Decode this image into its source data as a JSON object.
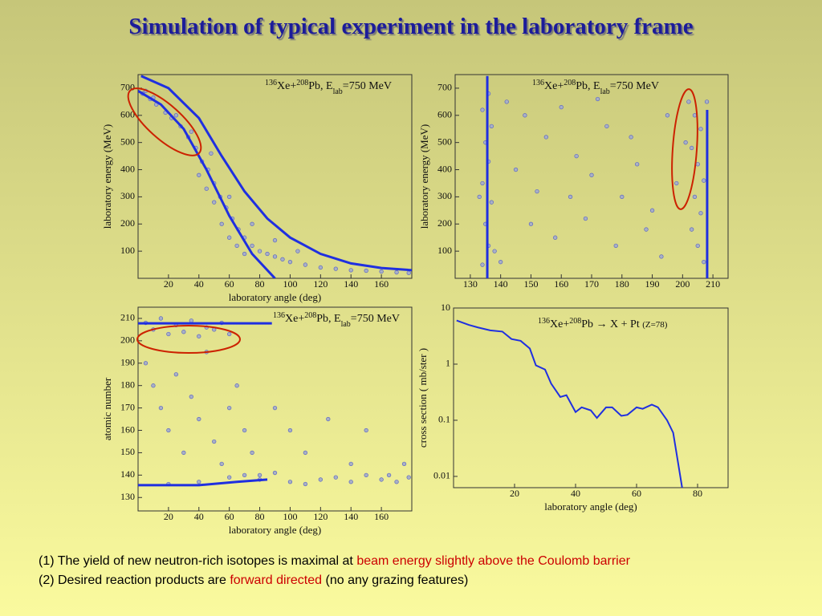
{
  "title": "Simulation of typical experiment in the laboratory frame",
  "chart_data": [
    {
      "type": "scatter",
      "annotation": [
        "136",
        "Xe+",
        "208",
        "Pb, E",
        "lab",
        "=750 MeV"
      ],
      "xlabel": "laboratory angle (deg)",
      "ylabel": "laboratory energy (MeV)",
      "xlim": [
        0,
        180
      ],
      "ylim": [
        0,
        750
      ],
      "xticks": [
        20,
        40,
        60,
        80,
        100,
        120,
        140,
        160
      ],
      "yticks": [
        100,
        200,
        300,
        400,
        500,
        600,
        700
      ],
      "points": {
        "color": "#a9b0c6",
        "x": [
          3,
          8,
          12,
          18,
          22,
          28,
          33,
          38,
          42,
          46,
          50,
          54,
          58,
          62,
          66,
          70,
          75,
          80,
          85,
          90,
          95,
          100,
          110,
          120,
          130,
          140,
          150,
          160,
          170,
          178,
          40,
          45,
          50,
          55,
          60,
          65,
          70,
          48,
          35,
          25,
          10,
          5,
          60,
          75,
          90,
          105
        ],
        "values": [
          680,
          660,
          640,
          610,
          590,
          560,
          520,
          480,
          430,
          400,
          350,
          300,
          260,
          220,
          180,
          150,
          120,
          100,
          90,
          80,
          70,
          60,
          50,
          40,
          35,
          30,
          28,
          25,
          22,
          20,
          380,
          330,
          280,
          200,
          150,
          120,
          90,
          460,
          540,
          600,
          665,
          690,
          300,
          200,
          140,
          100
        ]
      },
      "series": [
        {
          "color": "#1f2fe0",
          "x": [
            2,
            20,
            40,
            55,
            70,
            85,
            100,
            120,
            140,
            160,
            180
          ],
          "values": [
            745,
            700,
            590,
            450,
            320,
            220,
            150,
            90,
            55,
            38,
            30
          ]
        },
        {
          "color": "#1f2fe0",
          "x": [
            0,
            15,
            30,
            45,
            60,
            75,
            90
          ],
          "values": [
            690,
            640,
            550,
            400,
            230,
            90,
            0
          ]
        }
      ]
    },
    {
      "type": "scatter",
      "annotation": [
        "136",
        "Xe+",
        "208",
        "Pb, E",
        "lab",
        "=750 MeV"
      ],
      "ylabel": "laboratory energy (MeV)",
      "xlim": [
        125,
        215
      ],
      "ylim": [
        0,
        750
      ],
      "xticks": [
        130,
        140,
        150,
        160,
        170,
        180,
        190,
        200,
        210
      ],
      "yticks": [
        100,
        200,
        300,
        400,
        500,
        600,
        700
      ],
      "points": {
        "color": "#a9b0c6",
        "x": [
          134,
          136,
          135,
          137,
          134,
          136,
          135,
          137,
          134,
          136,
          138,
          133,
          202,
          204,
          206,
          203,
          205,
          207,
          204,
          206,
          203,
          205,
          207,
          208,
          201,
          142,
          148,
          155,
          160,
          165,
          170,
          175,
          180,
          185,
          190,
          195,
          150,
          158,
          168,
          178,
          188,
          198,
          145,
          163,
          172,
          183,
          193,
          140,
          152
        ],
        "values": [
          50,
          120,
          200,
          280,
          350,
          430,
          500,
          560,
          620,
          680,
          100,
          300,
          650,
          600,
          550,
          480,
          420,
          360,
          300,
          240,
          180,
          120,
          60,
          650,
          500,
          650,
          600,
          520,
          630,
          450,
          380,
          560,
          300,
          420,
          250,
          600,
          200,
          150,
          220,
          120,
          180,
          350,
          400,
          300,
          660,
          520,
          80,
          60,
          320
        ]
      },
      "series": [
        {
          "color": "#1f2fe0",
          "x": [
            135.6,
            135.6
          ],
          "values": [
            0,
            745
          ]
        },
        {
          "color": "#1f2fe0",
          "x": [
            208.1,
            208.1
          ],
          "values": [
            0,
            620
          ]
        }
      ]
    },
    {
      "type": "scatter",
      "annotation": [
        "136",
        "Xe+",
        "208",
        "Pb, E",
        "lab",
        "=750 MeV"
      ],
      "xlabel": "laboratory angle (deg)",
      "ylabel": "atomic  number",
      "xlim": [
        0,
        180
      ],
      "ylim": [
        124,
        215
      ],
      "xticks": [
        20,
        40,
        60,
        80,
        100,
        120,
        140,
        160
      ],
      "yticks": [
        130,
        140,
        150,
        160,
        170,
        180,
        190,
        200,
        210
      ],
      "points": {
        "color": "#a9b0c6",
        "x": [
          5,
          10,
          15,
          20,
          25,
          30,
          35,
          40,
          45,
          50,
          55,
          60,
          5,
          10,
          15,
          20,
          25,
          30,
          35,
          40,
          45,
          50,
          55,
          60,
          65,
          70,
          75,
          80,
          90,
          100,
          110,
          125,
          140,
          150,
          165,
          175,
          20,
          40,
          60,
          80,
          100,
          120,
          140,
          160,
          178,
          70,
          90,
          110,
          130,
          150,
          170
        ],
        "values": [
          208,
          205,
          210,
          203,
          207,
          204,
          209,
          202,
          206,
          205,
          208,
          203,
          190,
          180,
          170,
          160,
          185,
          150,
          175,
          165,
          195,
          155,
          145,
          170,
          180,
          160,
          150,
          140,
          170,
          160,
          150,
          165,
          145,
          160,
          140,
          145,
          136,
          137,
          139,
          138,
          137,
          138,
          137,
          138,
          139,
          140,
          141,
          136,
          139,
          140,
          137
        ]
      },
      "series": [
        {
          "color": "#1f2fe0",
          "x": [
            0,
            88
          ],
          "values": [
            207.8,
            207.8
          ]
        },
        {
          "color": "#1f2fe0",
          "x": [
            0,
            40,
            65,
            85
          ],
          "values": [
            135.5,
            135.5,
            137,
            138
          ]
        }
      ]
    },
    {
      "type": "line",
      "log_y": true,
      "annotation": [
        "136",
        "Xe+",
        "208",
        "Pb → X + Pt ",
        "(Z=78)"
      ],
      "xlabel": "laboratory angle (deg)",
      "ylabel": "cross section ( mb/ster )",
      "xlim": [
        0,
        90
      ],
      "ylim": [
        0.0063,
        10
      ],
      "xticks": [
        20,
        40,
        60,
        80
      ],
      "yticks": [
        10,
        1,
        0.1,
        0.01
      ],
      "series": [
        {
          "color": "#1f2fe0",
          "x": [
            1,
            5,
            8,
            12,
            16,
            19,
            22,
            25,
            27,
            30,
            32,
            35,
            37,
            40,
            42,
            45,
            47,
            50,
            52,
            55,
            57,
            60,
            62,
            65,
            67,
            70,
            72,
            75
          ],
          "values": [
            6.0,
            5.0,
            4.5,
            4.0,
            3.8,
            2.8,
            2.6,
            1.9,
            0.95,
            0.8,
            0.45,
            0.26,
            0.28,
            0.14,
            0.17,
            0.15,
            0.11,
            0.17,
            0.17,
            0.12,
            0.125,
            0.17,
            0.16,
            0.19,
            0.17,
            0.1,
            0.06,
            0.006
          ]
        }
      ]
    }
  ],
  "notes": [
    [
      "(1) The yield of new neutron-rich isotopes is maximal at ",
      "beam energy slightly above the Coulomb barrier"
    ],
    [
      "(2) Desired reaction products are ",
      "forward directed",
      " (no any grazing features)"
    ]
  ]
}
